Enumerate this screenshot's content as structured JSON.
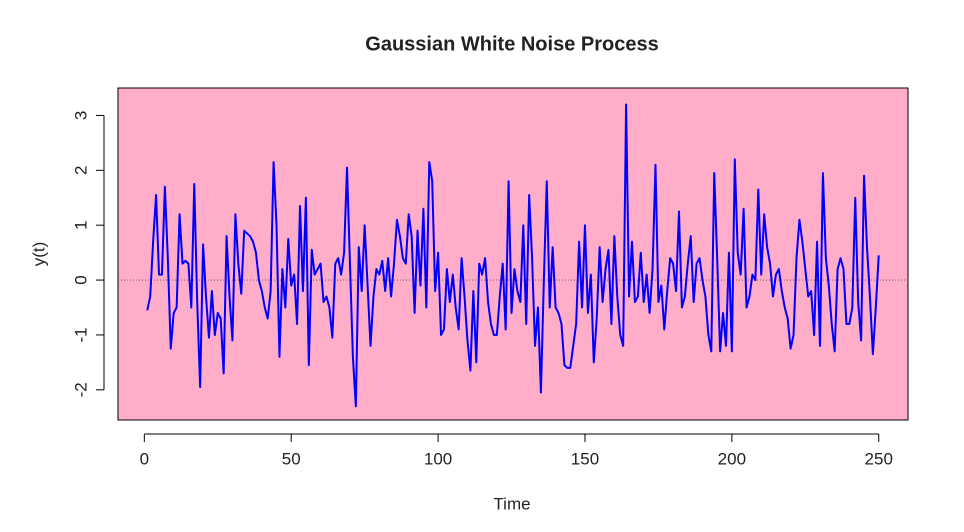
{
  "chart_data": {
    "type": "line",
    "title": "Gaussian White Noise Process",
    "xlabel": "Time",
    "ylabel": "y(t)",
    "x": [
      1,
      2,
      3,
      4,
      5,
      6,
      7,
      8,
      9,
      10,
      11,
      12,
      13,
      14,
      15,
      16,
      17,
      18,
      19,
      20,
      21,
      22,
      23,
      24,
      25,
      26,
      27,
      28,
      29,
      30,
      31,
      32,
      33,
      34,
      35,
      36,
      37,
      38,
      39,
      40,
      41,
      42,
      43,
      44,
      45,
      46,
      47,
      48,
      49,
      50,
      51,
      52,
      53,
      54,
      55,
      56,
      57,
      58,
      59,
      60,
      61,
      62,
      63,
      64,
      65,
      66,
      67,
      68,
      69,
      70,
      71,
      72,
      73,
      74,
      75,
      76,
      77,
      78,
      79,
      80,
      81,
      82,
      83,
      84,
      85,
      86,
      87,
      88,
      89,
      90,
      91,
      92,
      93,
      94,
      95,
      96,
      97,
      98,
      99,
      100,
      101,
      102,
      103,
      104,
      105,
      106,
      107,
      108,
      109,
      110,
      111,
      112,
      113,
      114,
      115,
      116,
      117,
      118,
      119,
      120,
      121,
      122,
      123,
      124,
      125,
      126,
      127,
      128,
      129,
      130,
      131,
      132,
      133,
      134,
      135,
      136,
      137,
      138,
      139,
      140,
      141,
      142,
      143,
      144,
      145,
      146,
      147,
      148,
      149,
      150,
      151,
      152,
      153,
      154,
      155,
      156,
      157,
      158,
      159,
      160,
      161,
      162,
      163,
      164,
      165,
      166,
      167,
      168,
      169,
      170,
      171,
      172,
      173,
      174,
      175,
      176,
      177,
      178,
      179,
      180,
      181,
      182,
      183,
      184,
      185,
      186,
      187,
      188,
      189,
      190,
      191,
      192,
      193,
      194,
      195,
      196,
      197,
      198,
      199,
      200,
      201,
      202,
      203,
      204,
      205,
      206,
      207,
      208,
      209,
      210,
      211,
      212,
      213,
      214,
      215,
      216,
      217,
      218,
      219,
      220,
      221,
      222,
      223,
      224,
      225,
      226,
      227,
      228,
      229,
      230,
      231,
      232,
      233,
      234,
      235,
      236,
      237,
      238,
      239,
      240,
      241,
      242,
      243,
      244,
      245,
      246,
      247,
      248,
      249,
      250
    ],
    "values": [
      -0.55,
      -0.3,
      0.7,
      1.55,
      0.1,
      0.1,
      1.7,
      0.4,
      -1.25,
      -0.6,
      -0.5,
      1.2,
      0.3,
      0.35,
      0.3,
      -0.5,
      1.75,
      -0.4,
      -1.95,
      0.65,
      -0.3,
      -1.05,
      -0.2,
      -1.0,
      -0.6,
      -0.7,
      -1.7,
      0.8,
      -0.3,
      -1.1,
      1.2,
      0.3,
      -0.25,
      0.9,
      0.85,
      0.8,
      0.7,
      0.5,
      0.0,
      -0.2,
      -0.5,
      -0.7,
      -0.2,
      2.15,
      1.0,
      -1.4,
      0.2,
      -0.5,
      0.75,
      -0.1,
      0.1,
      -0.8,
      1.35,
      -0.2,
      1.5,
      -1.55,
      0.55,
      0.1,
      0.2,
      0.3,
      -0.4,
      -0.3,
      -0.5,
      -1.05,
      0.3,
      0.4,
      0.1,
      0.5,
      2.05,
      0.3,
      -1.4,
      -2.3,
      0.6,
      -0.2,
      1.0,
      -0.1,
      -1.2,
      -0.3,
      0.2,
      0.1,
      0.35,
      -0.2,
      0.4,
      -0.3,
      0.3,
      1.1,
      0.8,
      0.4,
      0.3,
      1.2,
      0.8,
      -0.6,
      0.9,
      -0.1,
      1.3,
      -0.5,
      2.15,
      1.8,
      -0.2,
      0.5,
      -1.0,
      -0.9,
      0.2,
      -0.4,
      0.1,
      -0.5,
      -0.9,
      0.4,
      -0.3,
      -1.1,
      -1.65,
      -0.2,
      -1.5,
      0.3,
      0.1,
      0.4,
      -0.4,
      -0.8,
      -1.0,
      -1.0,
      -0.3,
      0.3,
      -0.9,
      1.8,
      -0.6,
      0.2,
      -0.2,
      -0.4,
      1.0,
      -0.8,
      1.55,
      0.4,
      -1.2,
      -0.5,
      -2.05,
      0.0,
      1.8,
      -0.5,
      0.6,
      -0.5,
      -0.6,
      -0.8,
      -1.55,
      -1.6,
      -1.6,
      -1.2,
      -0.8,
      0.7,
      -0.5,
      1.0,
      -0.6,
      0.1,
      -1.5,
      -0.7,
      0.6,
      -0.4,
      0.2,
      0.55,
      -0.8,
      0.8,
      -0.3,
      -1.0,
      -1.2,
      3.2,
      -0.3,
      0.7,
      -0.4,
      -0.3,
      0.5,
      -0.4,
      0.1,
      -0.6,
      0.2,
      2.1,
      -0.4,
      -0.1,
      -0.9,
      -0.2,
      0.4,
      0.3,
      -0.2,
      1.25,
      -0.5,
      -0.3,
      0.3,
      0.8,
      -0.4,
      0.3,
      0.4,
      0.0,
      -0.3,
      -1.0,
      -1.3,
      1.95,
      0.4,
      -1.3,
      -0.6,
      -1.2,
      0.5,
      -1.3,
      2.2,
      0.5,
      0.1,
      1.3,
      -0.5,
      -0.3,
      0.1,
      0.0,
      1.65,
      0.1,
      1.2,
      0.6,
      0.3,
      -0.3,
      0.1,
      0.2,
      -0.2,
      -0.5,
      -0.7,
      -1.25,
      -1.0,
      0.4,
      1.1,
      0.7,
      0.2,
      -0.3,
      -0.2,
      -1.0,
      0.7,
      -1.2,
      1.95,
      0.4,
      -0.1,
      -0.8,
      -1.3,
      0.2,
      0.4,
      0.2,
      -0.8,
      -0.8,
      -0.5,
      1.5,
      -0.4,
      -1.1,
      1.9,
      0.6,
      -0.3,
      -1.35,
      -0.5,
      0.45
    ],
    "color": "#0000ff",
    "background": "#ffadc9",
    "hline": 0,
    "xlim": [
      -8.96,
      259.96
    ],
    "ylim": [
      -2.55,
      3.5
    ],
    "xticks": [
      0,
      50,
      100,
      150,
      200,
      250
    ],
    "yticks": [
      -2,
      -1,
      0,
      1,
      2,
      3
    ]
  }
}
